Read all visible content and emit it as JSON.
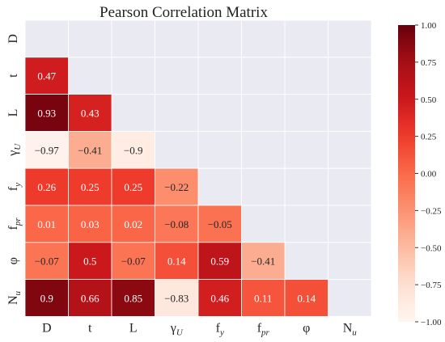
{
  "chart_data": {
    "type": "heatmap",
    "title": "Pearson Correlation Matrix",
    "variables": [
      "D",
      "t",
      "L",
      "γ_U",
      "f_y",
      "f_pr",
      "φ",
      "N_u"
    ],
    "labels": [
      {
        "base": "D",
        "sub": ""
      },
      {
        "base": "t",
        "sub": ""
      },
      {
        "base": "L",
        "sub": ""
      },
      {
        "base": "γ",
        "sub": "U"
      },
      {
        "base": "f",
        "sub": "y"
      },
      {
        "base": "f",
        "sub": "pr"
      },
      {
        "base": "φ",
        "sub": ""
      },
      {
        "base": "N",
        "sub": "u"
      }
    ],
    "matrix": [
      [
        null,
        null,
        null,
        null,
        null,
        null,
        null,
        null
      ],
      [
        0.47,
        null,
        null,
        null,
        null,
        null,
        null,
        null
      ],
      [
        0.93,
        0.43,
        null,
        null,
        null,
        null,
        null,
        null
      ],
      [
        -0.97,
        -0.41,
        -0.9,
        null,
        null,
        null,
        null,
        null
      ],
      [
        0.26,
        0.25,
        0.25,
        -0.22,
        null,
        null,
        null,
        null
      ],
      [
        0.01,
        0.03,
        0.02,
        -0.08,
        -0.05,
        null,
        null,
        null
      ],
      [
        -0.07,
        0.5,
        -0.07,
        0.14,
        0.59,
        -0.41,
        null,
        null
      ],
      [
        0.9,
        0.66,
        0.85,
        -0.83,
        0.46,
        0.11,
        0.14,
        null
      ]
    ],
    "color_range": [
      -1.0,
      1.0
    ],
    "colormap": "Reds",
    "colorbar_ticks": [
      1.0,
      0.75,
      0.5,
      0.25,
      0.0,
      -0.25,
      -0.5,
      -0.75,
      -1.0
    ],
    "colorbar_tick_labels": [
      "1.00",
      "0.75",
      "0.50",
      "0.25",
      "0.00",
      "−0.25",
      "−0.50",
      "−0.75",
      "−1.00"
    ],
    "grid": true,
    "masked": "upper-triangle-and-diagonal",
    "colors": {
      "plot_background": "#eaeaf2",
      "grid": "#ffffff"
    }
  }
}
